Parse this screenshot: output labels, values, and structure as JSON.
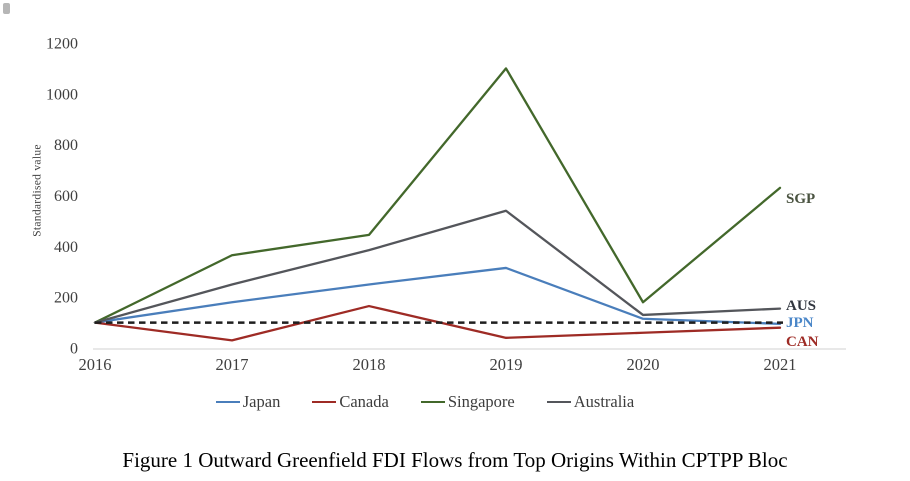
{
  "figure": {
    "caption": "Figure 1 Outward Greenfield FDI Flows from Top Origins Within CPTPP Bloc"
  },
  "chart_data": {
    "type": "line",
    "title": "",
    "xlabel": "",
    "ylabel": "Standardised value",
    "x": [
      "2016",
      "2017",
      "2018",
      "2019",
      "2020",
      "2021"
    ],
    "ylim": [
      0,
      1200
    ],
    "yticks": [
      0,
      200,
      400,
      600,
      800,
      1000,
      1200
    ],
    "grid": false,
    "legend_position": "bottom",
    "reference_line": {
      "value": 100,
      "style": "dashed",
      "color": "#1f1f1f"
    },
    "series": [
      {
        "name": "Japan",
        "tag": "JPN",
        "color": "#4a7ebb",
        "tag_color": "#4a86c8",
        "tag_x": 786,
        "tag_y": 327,
        "values": [
          100,
          180,
          250,
          315,
          115,
          95
        ]
      },
      {
        "name": "Canada",
        "tag": "CAN",
        "color": "#9e2b25",
        "tag_color": "#9e2b25",
        "tag_x": 786,
        "tag_y": 346,
        "values": [
          100,
          30,
          165,
          40,
          60,
          80
        ]
      },
      {
        "name": "Singapore",
        "tag": "SGP",
        "color": "#43682b",
        "tag_color": "#4a5340",
        "tag_x": 786,
        "tag_y": 203,
        "values": [
          100,
          365,
          445,
          1100,
          180,
          630
        ]
      },
      {
        "name": "Australia",
        "tag": "AUS",
        "color": "#54565b",
        "tag_color": "#31363f",
        "tag_x": 786,
        "tag_y": 310,
        "values": [
          100,
          250,
          385,
          540,
          130,
          155
        ]
      }
    ]
  }
}
